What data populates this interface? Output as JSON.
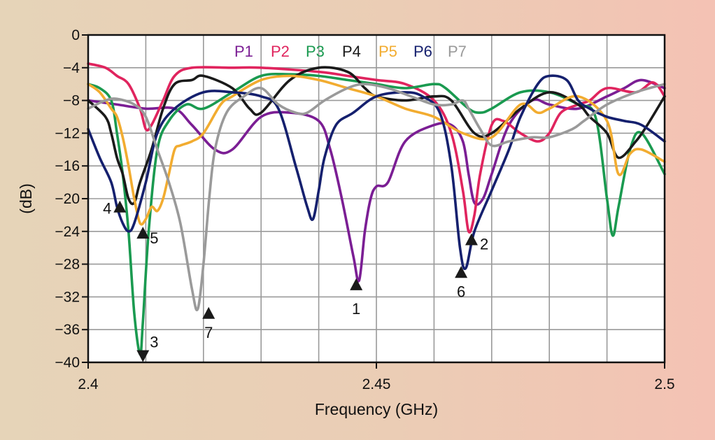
{
  "chart_data": {
    "type": "line",
    "xlabel": "Frequency (GHz)",
    "ylabel": "(dB)",
    "xlim": [
      2.4,
      2.5
    ],
    "ylim": [
      -40,
      0
    ],
    "x_ticks": [
      2.4,
      2.45,
      2.5
    ],
    "x_tick_labels": [
      "2.4",
      "2.45",
      "2.5"
    ],
    "y_ticks": [
      0,
      -4,
      -8,
      -12,
      -16,
      -20,
      -24,
      -28,
      -32,
      -36,
      -40
    ],
    "y_tick_labels": [
      "0",
      "−4",
      "−8",
      "−12",
      "−16",
      "−20",
      "−24",
      "−28",
      "−32",
      "−36",
      "−40"
    ],
    "grid": true,
    "legend_position": "top",
    "series": [
      {
        "name": "P1",
        "color": "#7b1e94",
        "x": [
          2.4,
          2.405,
          2.41,
          2.415,
          2.418,
          2.422,
          2.425,
          2.43,
          2.435,
          2.44,
          2.442,
          2.444,
          2.446,
          2.447,
          2.448,
          2.449,
          2.45,
          2.452,
          2.455,
          2.46,
          2.463,
          2.465,
          2.466,
          2.467,
          2.4685,
          2.47,
          2.473,
          2.477,
          2.48,
          2.485,
          2.49,
          2.493,
          2.496,
          2.5
        ],
        "y": [
          -8,
          -8.5,
          -9,
          -9,
          -11,
          -14,
          -14,
          -10,
          -9.5,
          -10.5,
          -14,
          -20,
          -27,
          -30,
          -24,
          -20,
          -18.5,
          -18,
          -13,
          -11,
          -11,
          -13,
          -17,
          -20.5,
          -20,
          -17,
          -11,
          -8,
          -8.5,
          -9,
          -7.5,
          -6.5,
          -5.5,
          -6.5
        ]
      },
      {
        "name": "P2",
        "color": "#e0245e",
        "x": [
          2.4,
          2.403,
          2.405,
          2.407,
          2.409,
          2.41,
          2.411,
          2.413,
          2.415,
          2.418,
          2.425,
          2.43,
          2.44,
          2.445,
          2.45,
          2.455,
          2.46,
          2.463,
          2.465,
          2.466,
          2.467,
          2.468,
          2.47,
          2.472,
          2.475,
          2.478,
          2.48,
          2.482,
          2.485,
          2.487,
          2.49,
          2.495,
          2.498,
          2.5
        ],
        "y": [
          -3.5,
          -4,
          -5,
          -6,
          -9,
          -11.5,
          -11,
          -8,
          -5,
          -4,
          -4,
          -4,
          -4.5,
          -5,
          -5.5,
          -6,
          -8,
          -12,
          -19,
          -24,
          -22,
          -17,
          -11,
          -10.5,
          -12,
          -13,
          -12,
          -9.5,
          -8.5,
          -8,
          -6.5,
          -7,
          -5.8,
          -7.5
        ]
      },
      {
        "name": "P3",
        "color": "#1a9a50",
        "x": [
          2.4,
          2.402,
          2.404,
          2.405,
          2.406,
          2.407,
          2.408,
          2.409,
          2.4095,
          2.4105,
          2.412,
          2.414,
          2.417,
          2.42,
          2.425,
          2.43,
          2.435,
          2.44,
          2.445,
          2.45,
          2.455,
          2.46,
          2.462,
          2.466,
          2.468,
          2.47,
          2.475,
          2.48,
          2.485,
          2.488,
          2.49,
          2.491,
          2.492,
          2.494,
          2.496,
          2.5
        ],
        "y": [
          -6,
          -6.5,
          -8,
          -12,
          -17,
          -24,
          -34,
          -39,
          -35,
          -24,
          -14,
          -10.5,
          -8.5,
          -9,
          -7,
          -5,
          -4.8,
          -5,
          -5.5,
          -6,
          -6.5,
          -6,
          -6.5,
          -9,
          -9.5,
          -9,
          -7,
          -7,
          -8.5,
          -10,
          -20,
          -24.5,
          -21,
          -14,
          -12,
          -17
        ]
      },
      {
        "name": "P4",
        "color": "#1a1a1a",
        "x": [
          2.4,
          2.403,
          2.404,
          2.405,
          2.406,
          2.407,
          2.408,
          2.409,
          2.411,
          2.413,
          2.415,
          2.418,
          2.42,
          2.425,
          2.428,
          2.43,
          2.435,
          2.44,
          2.445,
          2.448,
          2.45,
          2.455,
          2.46,
          2.463,
          2.467,
          2.47,
          2.475,
          2.48,
          2.485,
          2.487,
          2.49,
          2.492,
          2.495,
          2.497,
          2.5
        ],
        "y": [
          -8,
          -10,
          -12,
          -15,
          -17,
          -20,
          -20.5,
          -18,
          -14,
          -9,
          -6,
          -5.5,
          -5,
          -6.5,
          -9,
          -9.5,
          -5.5,
          -4,
          -4.5,
          -6.5,
          -7.5,
          -8,
          -7.5,
          -8,
          -12,
          -12,
          -9,
          -7,
          -8.5,
          -10,
          -12,
          -15,
          -13,
          -11,
          -7.5
        ]
      },
      {
        "name": "P5",
        "color": "#f2ac30",
        "x": [
          2.4,
          2.402,
          2.404,
          2.405,
          2.406,
          2.407,
          2.408,
          2.409,
          2.41,
          2.411,
          2.412,
          2.413,
          2.414,
          2.415,
          2.416,
          2.418,
          2.42,
          2.423,
          2.425,
          2.43,
          2.435,
          2.44,
          2.445,
          2.45,
          2.455,
          2.46,
          2.465,
          2.47,
          2.475,
          2.478,
          2.48,
          2.485,
          2.49,
          2.492,
          2.494,
          2.496,
          2.5
        ],
        "y": [
          -6,
          -7,
          -9,
          -10,
          -12.5,
          -16,
          -20,
          -23,
          -22.5,
          -21,
          -21.5,
          -20,
          -17,
          -14,
          -13.5,
          -13,
          -12,
          -8.5,
          -7.5,
          -5.5,
          -5,
          -5.5,
          -6.5,
          -7.5,
          -9,
          -10,
          -12,
          -12.5,
          -8.5,
          -9.5,
          -9,
          -7.5,
          -10.5,
          -17,
          -14.5,
          -14,
          -15.5
        ]
      },
      {
        "name": "P6",
        "color": "#15206e",
        "x": [
          2.4,
          2.402,
          2.404,
          2.405,
          2.406,
          2.407,
          2.408,
          2.41,
          2.412,
          2.415,
          2.42,
          2.425,
          2.43,
          2.433,
          2.436,
          2.438,
          2.439,
          2.44,
          2.441,
          2.443,
          2.446,
          2.45,
          2.455,
          2.458,
          2.461,
          2.463,
          2.4645,
          2.4655,
          2.467,
          2.47,
          2.473,
          2.475,
          2.478,
          2.48,
          2.483,
          2.485,
          2.487,
          2.49,
          2.493,
          2.496,
          2.5
        ],
        "y": [
          -11.5,
          -15,
          -18,
          -21,
          -23,
          -24,
          -23,
          -18,
          -12,
          -9,
          -7,
          -7,
          -7.5,
          -9,
          -16,
          -21,
          -22.5,
          -19,
          -15,
          -11,
          -9.5,
          -7.5,
          -7,
          -7.5,
          -9.5,
          -16,
          -26,
          -28.5,
          -24,
          -19,
          -14,
          -10,
          -6,
          -5,
          -5.5,
          -8,
          -9,
          -10,
          -10.5,
          -11,
          -13
        ]
      },
      {
        "name": "P7",
        "color": "#9a9a9a",
        "x": [
          2.4,
          2.403,
          2.405,
          2.408,
          2.41,
          2.412,
          2.414,
          2.416,
          2.418,
          2.419,
          2.42,
          2.421,
          2.422,
          2.424,
          2.427,
          2.43,
          2.433,
          2.436,
          2.438,
          2.441,
          2.445,
          2.448,
          2.452,
          2.456,
          2.46,
          2.463,
          2.465,
          2.466,
          2.468,
          2.47,
          2.473,
          2.477,
          2.48,
          2.484,
          2.486,
          2.49,
          2.495,
          2.5
        ],
        "y": [
          -9,
          -8,
          -7.8,
          -8.5,
          -10,
          -14,
          -18,
          -23,
          -31,
          -33.5,
          -28,
          -20,
          -14,
          -9.5,
          -7.5,
          -6.5,
          -8.5,
          -9.5,
          -9.5,
          -8,
          -6.5,
          -6,
          -6.5,
          -7.5,
          -8.5,
          -8.5,
          -8,
          -9,
          -11.5,
          -13.5,
          -13,
          -12.5,
          -12.5,
          -11.5,
          -10.5,
          -8.5,
          -7,
          -6
        ]
      }
    ],
    "markers": [
      {
        "label": "1",
        "x": 2.4465,
        "y": -30.5,
        "dir": "up"
      },
      {
        "label": "2",
        "x": 2.4665,
        "y": -25,
        "dir": "up"
      },
      {
        "label": "3",
        "x": 2.4095,
        "y": -39.2,
        "dir": "down"
      },
      {
        "label": "4",
        "x": 2.4055,
        "y": -21,
        "dir": "up"
      },
      {
        "label": "5",
        "x": 2.4095,
        "y": -24.2,
        "dir": "up"
      },
      {
        "label": "6",
        "x": 2.4647,
        "y": -29,
        "dir": "up"
      },
      {
        "label": "7",
        "x": 2.4209,
        "y": -34,
        "dir": "up"
      }
    ]
  }
}
